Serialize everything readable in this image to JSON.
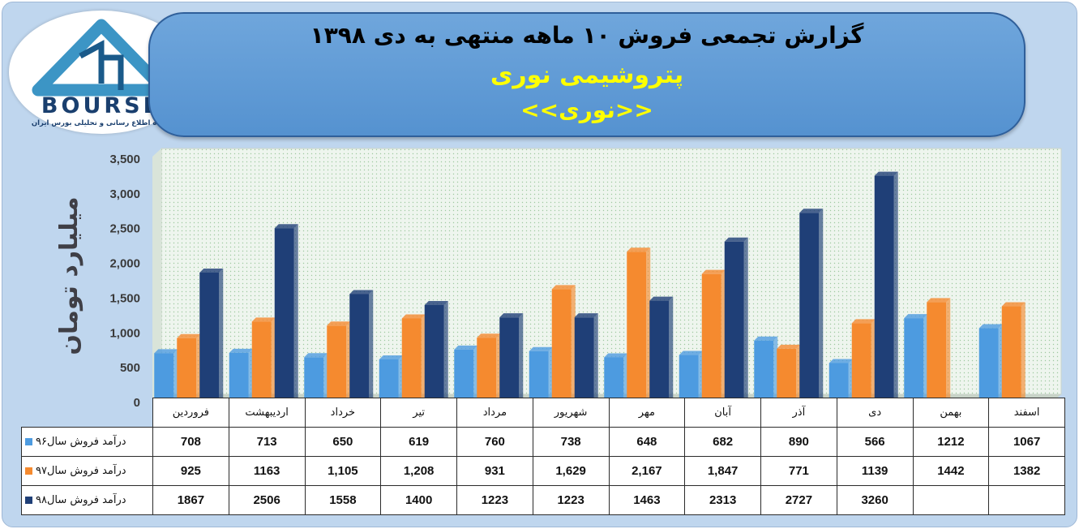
{
  "header": {
    "title": "گزارش تجمعی فروش ۱۰ ماهه منتهی به دی ۱۳۹۸",
    "subtitle": "پتروشیمی نوری",
    "symbol": "<<نوری>>"
  },
  "logo": {
    "name": "BOURSE",
    "tagline": "پایگاه اطلاع رسانی و تحلیلی بورس ایران"
  },
  "colors": {
    "series1": "#4d9be0",
    "series2": "#f58a2f",
    "series3": "#1f3f77",
    "plot_bg": "#eef5ee",
    "frame_bg": "#bfd6ee"
  },
  "chart_data": {
    "type": "bar",
    "categories": [
      "فروردین",
      "اردیبهشت",
      "خرداد",
      "تیر",
      "مرداد",
      "شهریور",
      "مهر",
      "آبان",
      "آذر",
      "دی",
      "بهمن",
      "اسفند"
    ],
    "ylabel": "میلیارد تومان",
    "ylim": [
      0,
      3500
    ],
    "yticks": [
      "0",
      "500",
      "1,000",
      "1,500",
      "2,000",
      "2,500",
      "3,000",
      "3,500"
    ],
    "grid": false,
    "series": [
      {
        "name": "درآمد فروش سال۹۶",
        "values": [
          708,
          713,
          650,
          619,
          760,
          738,
          648,
          682,
          890,
          566,
          1212,
          1067
        ],
        "labels": [
          "708",
          "713",
          "650",
          "619",
          "760",
          "738",
          "648",
          "682",
          "890",
          "566",
          "1212",
          "1067"
        ]
      },
      {
        "name": "درآمد فروش سال۹۷",
        "values": [
          925,
          1163,
          1105,
          1208,
          931,
          1629,
          2167,
          1847,
          771,
          1139,
          1442,
          1382
        ],
        "labels": [
          "925",
          "1163",
          "1,105",
          "1,208",
          "931",
          "1,629",
          "2,167",
          "1,847",
          "771",
          "1139",
          "1442",
          "1382"
        ]
      },
      {
        "name": "درآمد فروش سال۹۸",
        "values": [
          1867,
          2506,
          1558,
          1400,
          1223,
          1223,
          1463,
          2313,
          2727,
          3260,
          null,
          null
        ],
        "labels": [
          "1867",
          "2506",
          "1558",
          "1400",
          "1223",
          "1223",
          "1463",
          "2313",
          "2727",
          "3260",
          "",
          ""
        ]
      }
    ]
  }
}
